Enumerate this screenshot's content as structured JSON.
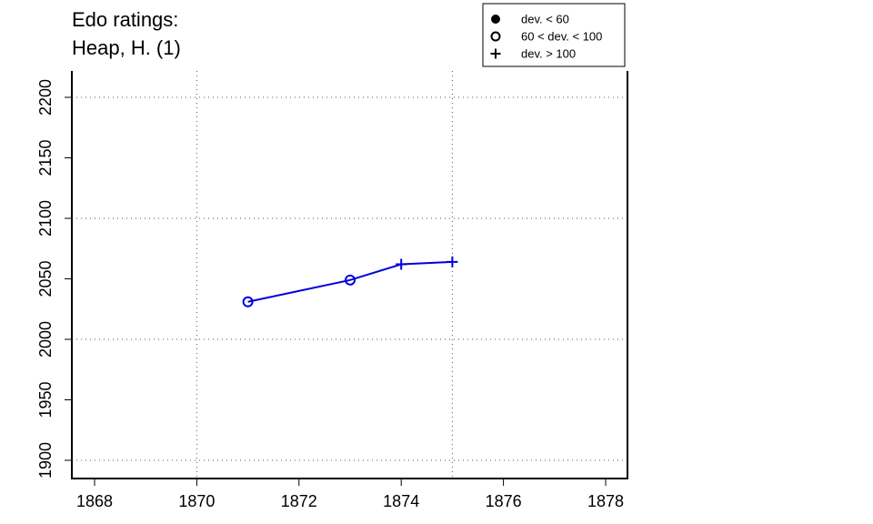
{
  "chart_data": {
    "type": "line",
    "title_lines": [
      "Edo ratings:",
      "Heap, H. (1)"
    ],
    "xlabel": "",
    "ylabel": "",
    "xlim": [
      1868,
      1878
    ],
    "ylim": [
      1900,
      2200
    ],
    "x_ticks": [
      "1868",
      "1870",
      "1872",
      "1874",
      "1876",
      "1878"
    ],
    "y_ticks": [
      "1900",
      "1950",
      "2000",
      "2050",
      "2100",
      "2150",
      "2200"
    ],
    "grid": "dotted",
    "line_color": "#0000dd",
    "legend": {
      "placement": "top-right",
      "entries": [
        {
          "marker": "filled-circle",
          "label": "dev. < 60"
        },
        {
          "marker": "open-circle",
          "label": "60 < dev. < 100"
        },
        {
          "marker": "plus",
          "label": "dev. > 100"
        }
      ]
    },
    "series": [
      {
        "points": [
          {
            "x": 1871,
            "y": 2031,
            "marker": "open-circle"
          },
          {
            "x": 1873,
            "y": 2049,
            "marker": "open-circle"
          },
          {
            "x": 1874,
            "y": 2062,
            "marker": "plus"
          },
          {
            "x": 1875,
            "y": 2064,
            "marker": "plus"
          }
        ]
      }
    ]
  }
}
